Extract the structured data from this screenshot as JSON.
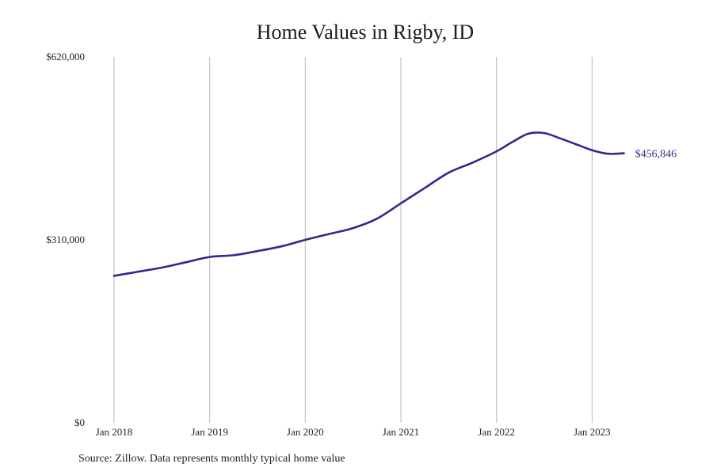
{
  "chart_data": {
    "type": "line",
    "title": "Home Values in Rigby, ID",
    "xlabel": "",
    "ylabel": "",
    "x_tick_labels": [
      "Jan 2018",
      "Jan 2019",
      "Jan 2020",
      "Jan 2021",
      "Jan 2022",
      "Jan 2023"
    ],
    "y_tick_labels": [
      "$620,000",
      "$310,000",
      "$0"
    ],
    "y_ticks": [
      620000,
      310000,
      0
    ],
    "ylim": [
      0,
      620000
    ],
    "xlim": [
      "2018-01",
      "2023-12"
    ],
    "grid": "vertical",
    "series": [
      {
        "color": "#2e2b8c",
        "points": [
          {
            "x": "2018-01",
            "y": 249000
          },
          {
            "x": "2018-04",
            "y": 256000
          },
          {
            "x": "2018-07",
            "y": 263000
          },
          {
            "x": "2018-10",
            "y": 272000
          },
          {
            "x": "2019-01",
            "y": 281000
          },
          {
            "x": "2019-04",
            "y": 284000
          },
          {
            "x": "2019-07",
            "y": 291000
          },
          {
            "x": "2019-10",
            "y": 299000
          },
          {
            "x": "2020-01",
            "y": 310000
          },
          {
            "x": "2020-04",
            "y": 320000
          },
          {
            "x": "2020-07",
            "y": 330000
          },
          {
            "x": "2020-10",
            "y": 346000
          },
          {
            "x": "2021-01",
            "y": 372000
          },
          {
            "x": "2021-04",
            "y": 398000
          },
          {
            "x": "2021-07",
            "y": 424000
          },
          {
            "x": "2021-10",
            "y": 441000
          },
          {
            "x": "2022-01",
            "y": 460000
          },
          {
            "x": "2022-03",
            "y": 476000
          },
          {
            "x": "2022-05",
            "y": 490000
          },
          {
            "x": "2022-07",
            "y": 491000
          },
          {
            "x": "2022-09",
            "y": 482000
          },
          {
            "x": "2022-11",
            "y": 472000
          },
          {
            "x": "2023-01",
            "y": 462000
          },
          {
            "x": "2023-03",
            "y": 456000
          },
          {
            "x": "2023-05",
            "y": 456846
          }
        ]
      }
    ],
    "annotations": [
      {
        "text": "$456,846",
        "x": "2023-05",
        "y": 456846
      }
    ]
  },
  "source": "Source: Zillow. Data represents monthly typical home value"
}
